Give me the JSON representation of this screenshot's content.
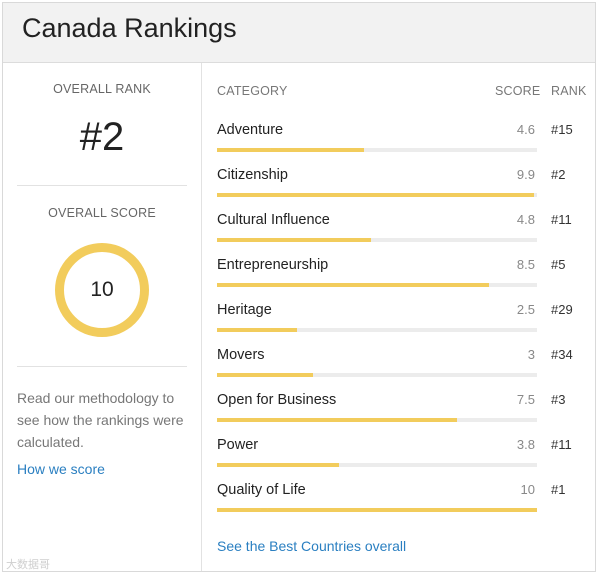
{
  "title": "Canada Rankings",
  "overall": {
    "rank_label": "OVERALL RANK",
    "rank_value": "#2",
    "score_label": "OVERALL SCORE",
    "score_value": "10",
    "methodology_text": "Read our methodology to see how the rankings were calculated.",
    "how_link": "How we score"
  },
  "table": {
    "headers": {
      "category": "CATEGORY",
      "score": "SCORE",
      "rank": "RANK"
    },
    "rows": [
      {
        "category": "Adventure",
        "score": "4.6",
        "rank": "#15",
        "bar_fraction": 0.46
      },
      {
        "category": "Citizenship",
        "score": "9.9",
        "rank": "#2",
        "bar_fraction": 0.99
      },
      {
        "category": "Cultural Influence",
        "score": "4.8",
        "rank": "#11",
        "bar_fraction": 0.48
      },
      {
        "category": "Entrepreneurship",
        "score": "8.5",
        "rank": "#5",
        "bar_fraction": 0.85
      },
      {
        "category": "Heritage",
        "score": "2.5",
        "rank": "#29",
        "bar_fraction": 0.25
      },
      {
        "category": "Movers",
        "score": "3",
        "rank": "#34",
        "bar_fraction": 0.3
      },
      {
        "category": "Open for Business",
        "score": "7.5",
        "rank": "#3",
        "bar_fraction": 0.75
      },
      {
        "category": "Power",
        "score": "3.8",
        "rank": "#11",
        "bar_fraction": 0.38
      },
      {
        "category": "Quality of Life",
        "score": "10",
        "rank": "#1",
        "bar_fraction": 1.0
      }
    ],
    "best_link": "See the Best Countries overall"
  },
  "watermark": "大数据哥",
  "colors": {
    "accent": "#f2cc5c",
    "link": "#2a7fc1",
    "track": "#ececec"
  }
}
